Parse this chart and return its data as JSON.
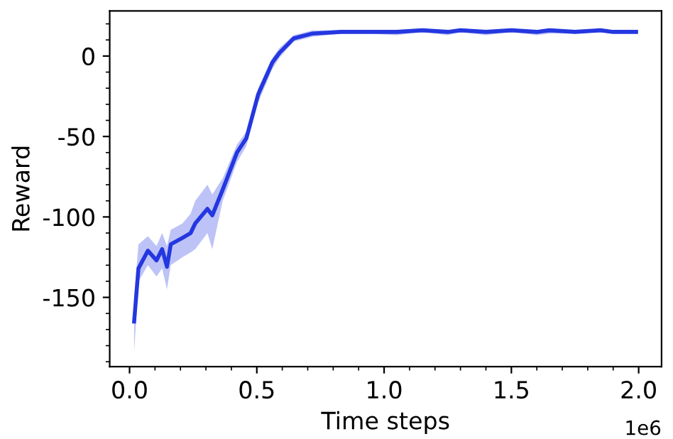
{
  "chart_data": {
    "type": "line",
    "xlabel": "Time steps",
    "ylabel": "Reward",
    "x": [
      0.018,
      0.035,
      0.072,
      0.106,
      0.128,
      0.147,
      0.162,
      0.208,
      0.24,
      0.258,
      0.306,
      0.325,
      0.366,
      0.422,
      0.459,
      0.505,
      0.561,
      0.589,
      0.645,
      0.719,
      0.83,
      0.94,
      1.05,
      1.15,
      1.25,
      1.3,
      1.4,
      1.5,
      1.6,
      1.65,
      1.75,
      1.85,
      1.9,
      1.99
    ],
    "series": [
      {
        "color": "#2437e0",
        "values": [
          -165,
          -132,
          -121,
          -127,
          -120,
          -131,
          -117,
          -113,
          -110,
          -104,
          -95,
          -99,
          -83,
          -60,
          -51,
          -24,
          -4,
          2,
          11,
          14,
          15,
          15,
          15,
          16,
          15,
          16,
          15,
          16,
          15,
          16,
          15,
          16,
          15,
          15
        ],
        "lower": [
          -184,
          -140,
          -130,
          -137,
          -132,
          -145,
          -130,
          -125,
          -122,
          -120,
          -110,
          -120,
          -90,
          -66,
          -56,
          -29,
          -8,
          -1,
          9,
          12,
          14,
          14,
          13,
          15,
          13,
          15,
          13,
          15,
          13,
          14,
          14,
          15,
          14,
          14
        ],
        "upper": [
          -150,
          -117,
          -112,
          -118,
          -110,
          -118,
          -108,
          -104,
          -98,
          -90,
          -80,
          -86,
          -76,
          -55,
          -47,
          -20,
          -1,
          5,
          13,
          16,
          16,
          16,
          16,
          17,
          16,
          17,
          16,
          17,
          16,
          17,
          16,
          17,
          16,
          16
        ]
      }
    ],
    "xlim": [
      -0.078,
      2.09
    ],
    "xticks": [
      {
        "value": 0,
        "label": "0.0"
      },
      0.5,
      {
        "value": 1,
        "label": "1.0"
      },
      1.5,
      {
        "value": 2,
        "label": "2.0"
      }
    ],
    "ylim": [
      -193,
      28
    ],
    "yticks": [
      -150,
      -100,
      -50,
      0
    ],
    "grid": false,
    "legend": false,
    "marker": "none",
    "line_style": "solid",
    "annotations": [
      "1e6"
    ]
  }
}
